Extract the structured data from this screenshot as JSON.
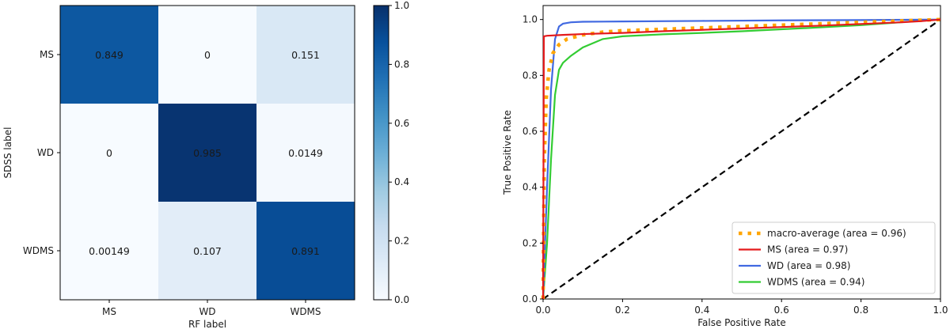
{
  "chart_data": [
    {
      "type": "heatmap",
      "title": "",
      "xlabel": "RF label",
      "ylabel": "SDSS label",
      "x_categories": [
        "MS",
        "WD",
        "WDMS"
      ],
      "y_categories": [
        "MS",
        "WD",
        "WDMS"
      ],
      "values": [
        [
          0.849,
          0,
          0.151
        ],
        [
          0,
          0.985,
          0.0149
        ],
        [
          0.00149,
          0.107,
          0.891
        ]
      ],
      "cell_labels": [
        [
          "0.849",
          "0",
          "0.151"
        ],
        [
          "0",
          "0.985",
          "0.0149"
        ],
        [
          "0.00149",
          "0.107",
          "0.891"
        ]
      ],
      "colorbar": {
        "range": [
          0,
          1
        ],
        "ticks": [
          0,
          0.2,
          0.4,
          0.6,
          0.8,
          1.0
        ],
        "tick_labels": [
          "0.0",
          "0.2",
          "0.4",
          "0.6",
          "0.8",
          "1.0"
        ],
        "colormap": "Blues",
        "color_low": "#f7fbff",
        "color_high": "#08306b"
      }
    },
    {
      "type": "line",
      "title": "",
      "xlabel": "False Positive Rate",
      "ylabel": "True Positive Rate",
      "xlim": [
        0,
        1
      ],
      "ylim": [
        0,
        1.05
      ],
      "x_ticks": [
        0,
        0.2,
        0.4,
        0.6,
        0.8,
        1.0
      ],
      "x_tick_labels": [
        "0.0",
        "0.2",
        "0.4",
        "0.6",
        "0.8",
        "1.0"
      ],
      "y_ticks": [
        0,
        0.2,
        0.4,
        0.6,
        0.8,
        1.0
      ],
      "y_tick_labels": [
        "0.0",
        "0.2",
        "0.4",
        "0.6",
        "0.8",
        "1.0"
      ],
      "grid": false,
      "legend_position": "lower-right",
      "series": [
        {
          "name": "macro-average (area = 0.96)",
          "color": "#ffa500",
          "style": "dotted",
          "x": [
            0,
            0.003,
            0.008,
            0.015,
            0.025,
            0.04,
            0.06,
            0.1,
            0.15,
            0.2,
            0.3,
            0.4,
            0.5,
            0.6,
            0.7,
            0.8,
            0.9,
            1.0
          ],
          "y": [
            0,
            0.5,
            0.72,
            0.82,
            0.88,
            0.91,
            0.93,
            0.945,
            0.955,
            0.96,
            0.965,
            0.97,
            0.975,
            0.98,
            0.985,
            0.99,
            0.995,
            1.0
          ]
        },
        {
          "name": "MS (area = 0.97)",
          "color": "#e41a1c",
          "style": "solid",
          "x": [
            0,
            0.002,
            0.01,
            0.05,
            0.1,
            0.2,
            0.3,
            0.4,
            0.5,
            0.6,
            0.7,
            0.8,
            0.9,
            0.95,
            1.0
          ],
          "y": [
            0,
            0.94,
            0.942,
            0.945,
            0.948,
            0.952,
            0.958,
            0.963,
            0.968,
            0.973,
            0.978,
            0.984,
            0.99,
            0.994,
            1.0
          ]
        },
        {
          "name": "WD (area = 0.98)",
          "color": "#4169e1",
          "style": "solid",
          "x": [
            0,
            0.01,
            0.02,
            0.03,
            0.04,
            0.05,
            0.07,
            0.1,
            0.2,
            0.4,
            0.6,
            0.8,
            1.0
          ],
          "y": [
            0,
            0.4,
            0.75,
            0.93,
            0.975,
            0.985,
            0.99,
            0.992,
            0.993,
            0.995,
            0.997,
            0.998,
            1.0
          ]
        },
        {
          "name": "WDMS (area = 0.94)",
          "color": "#33cc33",
          "style": "solid",
          "x": [
            0,
            0.01,
            0.02,
            0.03,
            0.04,
            0.05,
            0.07,
            0.1,
            0.15,
            0.2,
            0.3,
            0.4,
            0.5,
            0.6,
            0.7,
            0.8,
            0.9,
            1.0
          ],
          "y": [
            0,
            0.2,
            0.5,
            0.73,
            0.82,
            0.845,
            0.87,
            0.9,
            0.93,
            0.94,
            0.947,
            0.952,
            0.958,
            0.965,
            0.972,
            0.98,
            0.99,
            1.0
          ]
        },
        {
          "name": "",
          "color": "#000000",
          "style": "dashed",
          "x": [
            0,
            1
          ],
          "y": [
            0,
            1
          ]
        }
      ]
    }
  ]
}
